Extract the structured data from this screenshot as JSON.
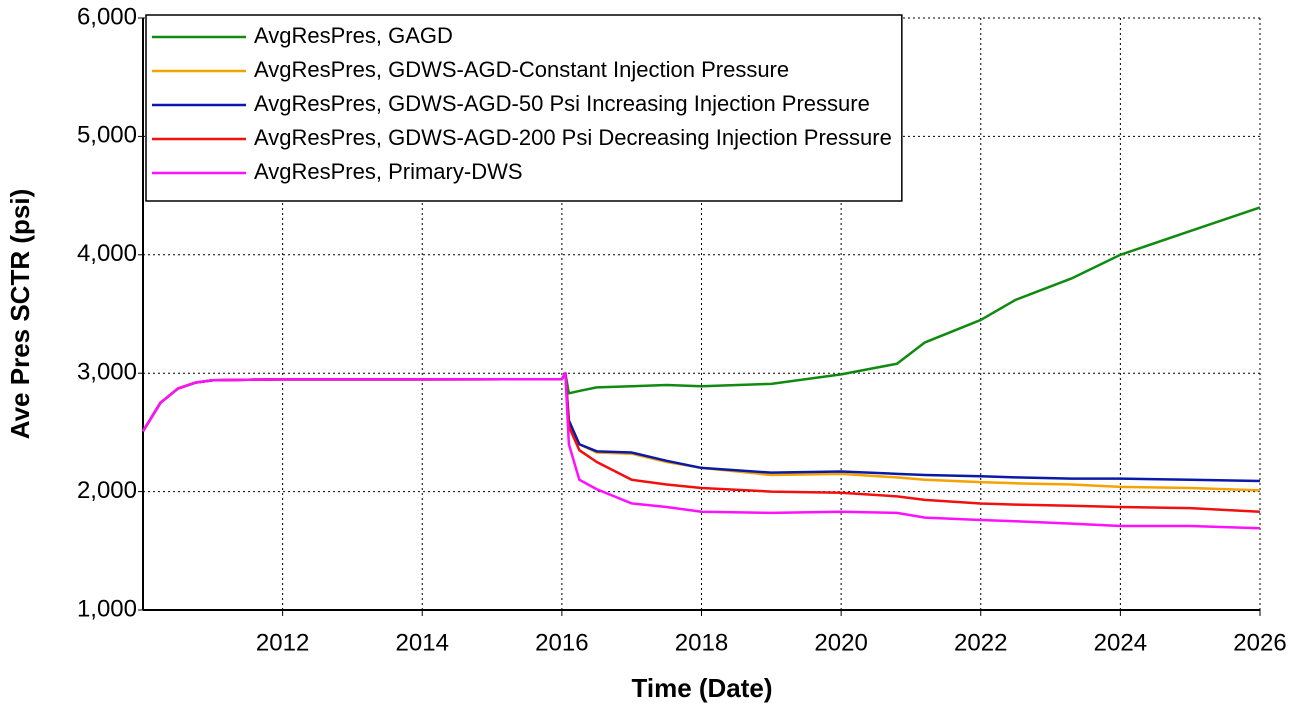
{
  "chart_data": {
    "type": "line",
    "x_label": "Time (Date)",
    "y_label": "Ave Pres SCTR (psi)",
    "x": [
      2010,
      2010.25,
      2010.5,
      2010.75,
      2011,
      2011.5,
      2012,
      2014,
      2016,
      2016.05,
      2016.1,
      2016.25,
      2016.5,
      2017,
      2017.5,
      2018,
      2019,
      2020,
      2020.8,
      2021.2,
      2022,
      2022.5,
      2023.3,
      2024,
      2025,
      2026
    ],
    "series": [
      {
        "name": "AvgResPres, GAGD",
        "color": "#108a10",
        "values": [
          2510,
          2750,
          2870,
          2920,
          2940,
          2945,
          2948,
          2948,
          2950,
          3000,
          2830,
          2850,
          2880,
          2890,
          2900,
          2890,
          2910,
          2990,
          3080,
          3260,
          3450,
          3620,
          3800,
          4000,
          4200,
          4400
        ]
      },
      {
        "name": "AvgResPres, GDWS-AGD-Constant Injection Pressure",
        "color": "#f5a300",
        "values": [
          2510,
          2750,
          2870,
          2920,
          2940,
          2945,
          2948,
          2948,
          2950,
          3000,
          2600,
          2400,
          2330,
          2320,
          2250,
          2200,
          2140,
          2150,
          2120,
          2100,
          2080,
          2070,
          2060,
          2040,
          2030,
          2010
        ]
      },
      {
        "name": "AvgResPres, GDWS-AGD-50 Psi Increasing Injection Pressure",
        "color": "#0a1aa8",
        "values": [
          2510,
          2750,
          2870,
          2920,
          2940,
          2945,
          2948,
          2948,
          2950,
          3000,
          2600,
          2400,
          2340,
          2330,
          2260,
          2200,
          2160,
          2170,
          2150,
          2140,
          2130,
          2120,
          2110,
          2110,
          2100,
          2090
        ]
      },
      {
        "name": "AvgResPres, GDWS-AGD-200 Psi Decreasing Injection Pressure",
        "color": "#f01010",
        "values": [
          2510,
          2750,
          2870,
          2920,
          2940,
          2945,
          2948,
          2948,
          2950,
          3000,
          2550,
          2350,
          2250,
          2100,
          2060,
          2030,
          2000,
          1990,
          1960,
          1930,
          1900,
          1890,
          1880,
          1870,
          1860,
          1830
        ]
      },
      {
        "name": "AvgResPres, Primary-DWS",
        "color": "#ff10ff",
        "values": [
          2510,
          2750,
          2870,
          2920,
          2940,
          2945,
          2948,
          2948,
          2950,
          3000,
          2400,
          2100,
          2020,
          1900,
          1870,
          1830,
          1820,
          1830,
          1820,
          1780,
          1760,
          1750,
          1730,
          1710,
          1710,
          1690
        ]
      }
    ],
    "xlim": [
      2010,
      2026
    ],
    "xticks": [
      2012,
      2014,
      2016,
      2018,
      2020,
      2022,
      2024,
      2026
    ],
    "ylim": [
      1000,
      6000
    ],
    "yticks": [
      {
        "value": 1000,
        "label": "1,000"
      },
      {
        "value": 2000,
        "label": "2,000"
      },
      {
        "value": 3000,
        "label": "3,000"
      },
      {
        "value": 4000,
        "label": "4,000"
      },
      {
        "value": 5000,
        "label": "5,000"
      },
      {
        "value": 6000,
        "label": "6,000"
      }
    ],
    "grid": true,
    "legend": "top-left"
  }
}
